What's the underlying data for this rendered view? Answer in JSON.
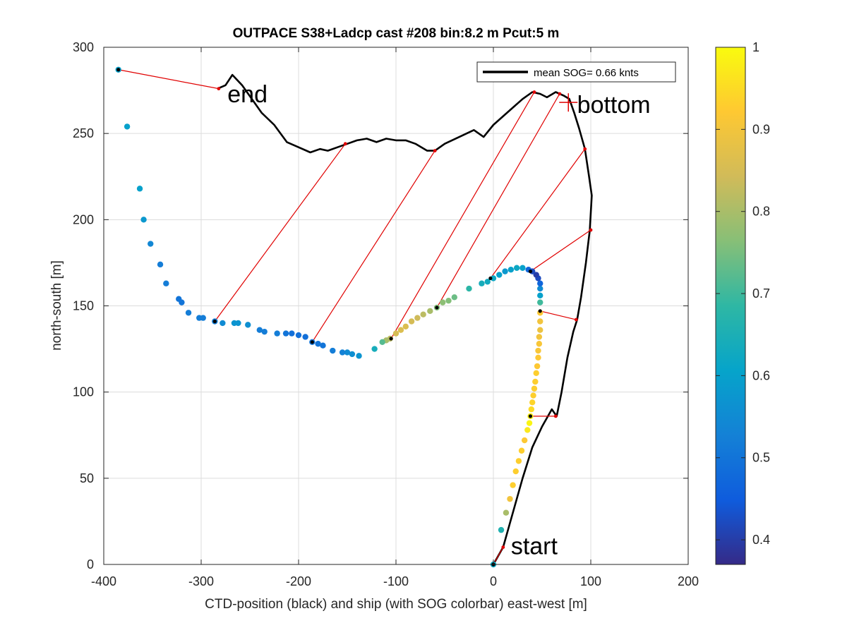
{
  "chart_data": {
    "type": "scatter",
    "title": "OUTPACE S38+Ladcp cast #208 bin:8.2 m  Pcut:5 m",
    "xlabel": "CTD-position (black) and ship (with SOG colorbar) east-west [m]",
    "ylabel": "north-south [m]",
    "xlim": [
      -400,
      200
    ],
    "ylim": [
      0,
      300
    ],
    "xticks": [
      "-400",
      "-300",
      "-200",
      "-100",
      "0",
      "100",
      "200"
    ],
    "yticks": [
      "0",
      "50",
      "100",
      "150",
      "200",
      "250",
      "300"
    ],
    "grid": true,
    "legend": {
      "placement": "top-right",
      "label": "mean SOG=  0.66 knts"
    },
    "colorbar": {
      "range": [
        0.37,
        1.0
      ],
      "ticks": [
        "0.4",
        "0.5",
        "0.6",
        "0.7",
        "0.8",
        "0.9",
        "1"
      ],
      "colormap": [
        "#352a87",
        "#0f5cdd",
        "#1481d6",
        "#06a4ca",
        "#2eb7a4",
        "#87bf77",
        "#d1bb59",
        "#fec832",
        "#f9fb0e"
      ]
    },
    "annotations": [
      {
        "text": "start",
        "x": 18,
        "y": 6
      },
      {
        "text": "end",
        "x": -273,
        "y": 268
      },
      {
        "text": "bottom",
        "x": 86,
        "y": 262
      }
    ],
    "bottom_marker": {
      "x": 77,
      "y": 268
    },
    "ctd_track": [
      [
        0,
        0
      ],
      [
        10,
        10
      ],
      [
        20,
        30
      ],
      [
        30,
        50
      ],
      [
        40,
        68
      ],
      [
        50,
        80
      ],
      [
        60,
        90
      ],
      [
        65,
        86
      ],
      [
        70,
        100
      ],
      [
        76,
        120
      ],
      [
        82,
        135
      ],
      [
        86,
        142
      ],
      [
        90,
        155
      ],
      [
        95,
        175
      ],
      [
        99,
        194
      ],
      [
        101,
        214
      ],
      [
        98,
        226
      ],
      [
        94,
        241
      ],
      [
        88,
        253
      ],
      [
        83,
        262
      ],
      [
        78,
        270
      ],
      [
        72,
        272
      ],
      [
        64,
        274
      ],
      [
        55,
        271
      ],
      [
        48,
        273
      ],
      [
        40,
        274
      ],
      [
        30,
        270
      ],
      [
        20,
        265
      ],
      [
        0,
        255
      ],
      [
        -10,
        248
      ],
      [
        -20,
        252
      ],
      [
        -35,
        248
      ],
      [
        -50,
        244
      ],
      [
        -60,
        240
      ],
      [
        -68,
        240
      ],
      [
        -80,
        244
      ],
      [
        -90,
        246
      ],
      [
        -100,
        246
      ],
      [
        -110,
        247
      ],
      [
        -120,
        245
      ],
      [
        -130,
        247
      ],
      [
        -140,
        246
      ],
      [
        -150,
        244
      ],
      [
        -160,
        242
      ],
      [
        -170,
        240
      ],
      [
        -178,
        241
      ],
      [
        -188,
        239
      ],
      [
        -200,
        242
      ],
      [
        -212,
        245
      ],
      [
        -225,
        255
      ],
      [
        -238,
        262
      ],
      [
        -248,
        270
      ],
      [
        -258,
        278
      ],
      [
        -268,
        284
      ],
      [
        -275,
        278
      ],
      [
        -283,
        276
      ]
    ],
    "ship_track": [
      [
        0,
        0,
        0.62
      ],
      [
        8,
        20,
        0.66
      ],
      [
        13,
        30,
        0.8
      ],
      [
        17,
        38,
        0.9
      ],
      [
        20,
        46,
        0.93
      ],
      [
        23,
        54,
        0.93
      ],
      [
        26,
        60,
        0.93
      ],
      [
        29,
        66,
        0.93
      ],
      [
        32,
        72,
        0.92
      ],
      [
        35,
        78,
        0.97
      ],
      [
        37,
        82,
        0.99
      ],
      [
        38,
        86,
        0.98
      ],
      [
        39,
        90,
        0.95
      ],
      [
        40,
        94,
        0.94
      ],
      [
        41,
        98,
        0.93
      ],
      [
        42,
        102,
        0.93
      ],
      [
        43,
        106,
        0.93
      ],
      [
        44,
        111,
        0.93
      ],
      [
        45,
        115,
        0.92
      ],
      [
        46,
        120,
        0.92
      ],
      [
        46,
        124,
        0.91
      ],
      [
        47,
        128,
        0.91
      ],
      [
        47,
        132,
        0.9
      ],
      [
        48,
        136,
        0.89
      ],
      [
        48,
        141,
        0.9
      ],
      [
        48,
        146,
        0.92
      ],
      [
        48,
        152,
        0.7
      ],
      [
        48,
        156,
        0.6
      ],
      [
        48,
        160,
        0.55
      ],
      [
        48,
        163,
        0.47
      ],
      [
        46,
        166,
        0.42
      ],
      [
        44,
        168,
        0.4
      ],
      [
        40,
        170,
        0.42
      ],
      [
        36,
        171,
        0.47
      ],
      [
        30,
        172,
        0.6
      ],
      [
        24,
        172,
        0.62
      ],
      [
        18,
        171,
        0.6
      ],
      [
        12,
        170,
        0.58
      ],
      [
        6,
        168,
        0.6
      ],
      [
        0,
        166,
        0.62
      ],
      [
        -6,
        164,
        0.63
      ],
      [
        -12,
        163,
        0.64
      ],
      [
        -25,
        160,
        0.68
      ],
      [
        -40,
        155,
        0.74
      ],
      [
        -46,
        153,
        0.76
      ],
      [
        -52,
        152,
        0.77
      ],
      [
        -58,
        149,
        0.76
      ],
      [
        -65,
        147,
        0.8
      ],
      [
        -72,
        145,
        0.82
      ],
      [
        -78,
        143,
        0.84
      ],
      [
        -84,
        141,
        0.85
      ],
      [
        -90,
        138,
        0.86
      ],
      [
        -95,
        136,
        0.86
      ],
      [
        -100,
        134,
        0.85
      ],
      [
        -106,
        131,
        0.82
      ],
      [
        -110,
        130,
        0.8
      ],
      [
        -114,
        129,
        0.72
      ],
      [
        -122,
        125,
        0.64
      ],
      [
        -138,
        121,
        0.57
      ],
      [
        -145,
        122,
        0.56
      ],
      [
        -150,
        123,
        0.55
      ],
      [
        -155,
        123,
        0.53
      ],
      [
        -165,
        124,
        0.52
      ],
      [
        -175,
        127,
        0.5
      ],
      [
        -180,
        128,
        0.5
      ],
      [
        -186,
        129,
        0.5
      ],
      [
        -193,
        132,
        0.49
      ],
      [
        -200,
        133,
        0.49
      ],
      [
        -207,
        134,
        0.49
      ],
      [
        -213,
        134,
        0.5
      ],
      [
        -222,
        134,
        0.52
      ],
      [
        -235,
        135,
        0.52
      ],
      [
        -240,
        136,
        0.52
      ],
      [
        -252,
        139,
        0.56
      ],
      [
        -262,
        140,
        0.57
      ],
      [
        -266,
        140,
        0.57
      ],
      [
        -278,
        140,
        0.55
      ],
      [
        -286,
        141,
        0.52
      ],
      [
        -298,
        143,
        0.52
      ],
      [
        -302,
        143,
        0.52
      ],
      [
        -313,
        146,
        0.52
      ],
      [
        -320,
        152,
        0.5
      ],
      [
        -323,
        154,
        0.5
      ],
      [
        -336,
        163,
        0.52
      ],
      [
        -342,
        174,
        0.52
      ],
      [
        -352,
        186,
        0.54
      ],
      [
        -359,
        200,
        0.58
      ],
      [
        -363,
        218,
        0.6
      ],
      [
        -376,
        254,
        0.6
      ],
      [
        -385,
        287,
        0.6
      ]
    ],
    "ctd_matches": [
      {
        "ship": [
          0,
          0
        ],
        "ctd": [
          10,
          10
        ]
      },
      {
        "ship": [
          38,
          86
        ],
        "ctd": [
          64,
          86
        ]
      },
      {
        "ship": [
          48,
          147
        ],
        "ctd": [
          85,
          142
        ]
      },
      {
        "ship": [
          38,
          170
        ],
        "ctd": [
          100,
          194
        ]
      },
      {
        "ship": [
          -3,
          166
        ],
        "ctd": [
          94,
          241
        ]
      },
      {
        "ship": [
          -58,
          149
        ],
        "ctd": [
          68,
          273
        ]
      },
      {
        "ship": [
          -105,
          131
        ],
        "ctd": [
          42,
          274
        ]
      },
      {
        "ship": [
          -186,
          129
        ],
        "ctd": [
          -60,
          240
        ]
      },
      {
        "ship": [
          -286,
          141
        ],
        "ctd": [
          -152,
          244
        ]
      },
      {
        "ship": [
          -385,
          287
        ],
        "ctd": [
          -282,
          276
        ]
      }
    ]
  }
}
